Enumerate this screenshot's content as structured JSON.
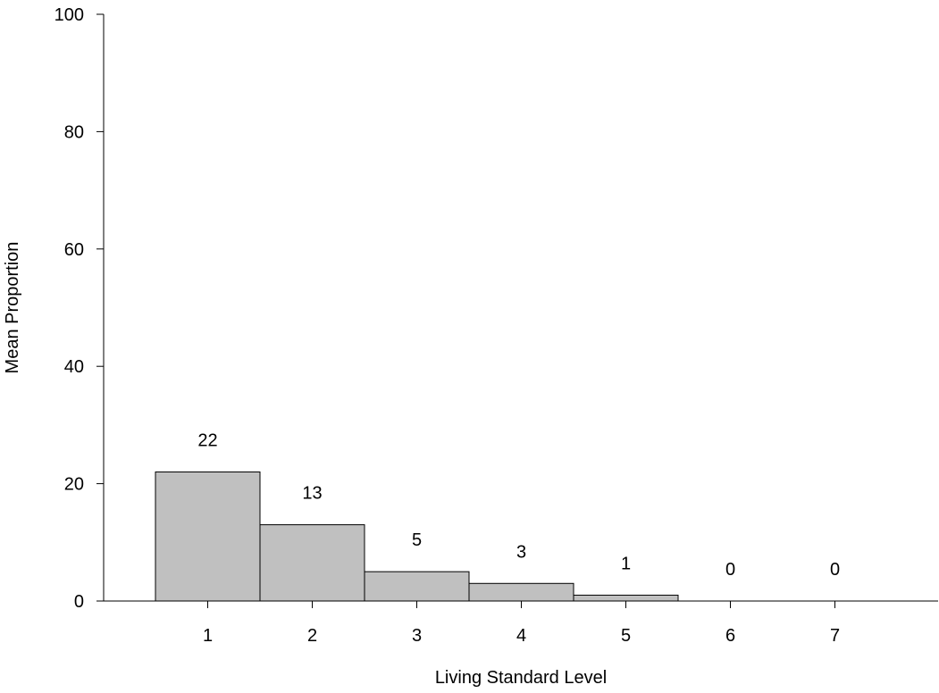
{
  "chart_data": {
    "type": "bar",
    "title": "",
    "xlabel": "Living Standard Level",
    "ylabel": "Mean Proportion",
    "categories": [
      "1",
      "2",
      "3",
      "4",
      "5",
      "6",
      "7"
    ],
    "values": [
      22,
      13,
      5,
      3,
      1,
      0,
      0
    ],
    "data_labels": [
      "22",
      "13",
      "5",
      "3",
      "1",
      "0",
      "0"
    ],
    "ylim": [
      0,
      100
    ],
    "yticks": [
      0,
      20,
      40,
      60,
      80,
      100
    ],
    "ytick_labels": [
      "0",
      "20",
      "40",
      "60",
      "80",
      "100"
    ],
    "grid": false,
    "legend": "none",
    "bar_fill": "#c0c0c0",
    "bar_stroke": "#000000"
  }
}
